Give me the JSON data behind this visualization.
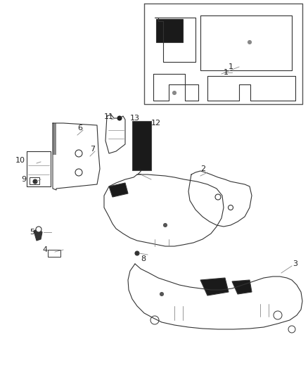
{
  "bg": "#ffffff",
  "lc": "#333333",
  "lc_gray": "#888888",
  "lw": 0.8,
  "fig_w": 4.38,
  "fig_h": 5.33,
  "dpi": 100
}
